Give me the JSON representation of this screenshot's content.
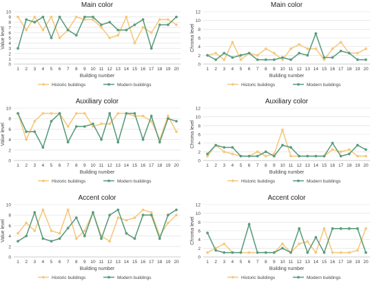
{
  "colors": {
    "historic": "#f5c97e",
    "modern": "#5b9c7e",
    "grid": "#dcdcdc",
    "text": "#444444"
  },
  "chart_data": [
    {
      "type": "line",
      "title": "Main color",
      "xlabel": "Building number",
      "ylabel": "Value level",
      "x": [
        1,
        2,
        3,
        4,
        5,
        6,
        7,
        8,
        9,
        10,
        11,
        12,
        13,
        14,
        15,
        16,
        17,
        18,
        19,
        20
      ],
      "ylim": [
        0,
        10
      ],
      "yticks": [
        0,
        1,
        2,
        3,
        4,
        5,
        6,
        7,
        8,
        9,
        10
      ],
      "legend_position": "bottom",
      "series": [
        {
          "name": "Historic buildings",
          "values": [
            9,
            6.5,
            9,
            6.5,
            9,
            5,
            6.5,
            9,
            8.5,
            8.5,
            7,
            5,
            5.5,
            9,
            4,
            7,
            6,
            8.5,
            8.5,
            7.5
          ]
        },
        {
          "name": "Modern buildings",
          "values": [
            3,
            8.5,
            8,
            9,
            5,
            9,
            6.5,
            5.5,
            9,
            9,
            7.5,
            8,
            6.5,
            6.5,
            7.5,
            8.5,
            3,
            7.5,
            7.5,
            9
          ]
        }
      ]
    },
    {
      "type": "line",
      "title": "Main color",
      "xlabel": "Building number",
      "ylabel": "Chroma level",
      "x": [
        1,
        2,
        3,
        4,
        5,
        6,
        7,
        8,
        9,
        10,
        11,
        12,
        13,
        14,
        15,
        16,
        17,
        18,
        19,
        20
      ],
      "ylim": [
        0,
        12
      ],
      "yticks": [
        0,
        2,
        4,
        6,
        8,
        10,
        12
      ],
      "legend_position": "bottom",
      "series": [
        {
          "name": "Historic buildings",
          "values": [
            2,
            2.5,
            1,
            5,
            1,
            2.5,
            2,
            3.5,
            2.5,
            1,
            3.5,
            4.5,
            3.5,
            3.5,
            1,
            3.5,
            5,
            2.5,
            2.5,
            3.5
          ]
        },
        {
          "name": "Modern buildings",
          "values": [
            2,
            1,
            2.5,
            1.5,
            2,
            2.5,
            1,
            1,
            1,
            1.5,
            1,
            2.5,
            2,
            7,
            1.5,
            1.5,
            3,
            2.5,
            1,
            1
          ]
        }
      ]
    },
    {
      "type": "line",
      "title": "Auxiliary color",
      "xlabel": "Building number",
      "ylabel": "Value level",
      "x": [
        1,
        2,
        3,
        4,
        5,
        6,
        7,
        8,
        9,
        10,
        11,
        12,
        13,
        14,
        15,
        16,
        17,
        18,
        19,
        20
      ],
      "ylim": [
        0,
        10
      ],
      "yticks": [
        0,
        2,
        4,
        6,
        8,
        10
      ],
      "legend_position": "bottom",
      "series": [
        {
          "name": "Historic buildings",
          "values": [
            9,
            4,
            7.5,
            9,
            9,
            9,
            6.5,
            9,
            9,
            6.5,
            7,
            7,
            9,
            9,
            8.5,
            8.5,
            7.5,
            4,
            8.5,
            5.5
          ]
        },
        {
          "name": "Modern buildings",
          "values": [
            9,
            5.5,
            5.5,
            2.5,
            7.5,
            9,
            3.5,
            6.5,
            6.5,
            7,
            4,
            9,
            3.5,
            9,
            9,
            4,
            8.5,
            3.5,
            8,
            7.5
          ]
        }
      ]
    },
    {
      "type": "line",
      "title": "Auxiliary color",
      "xlabel": "Building number",
      "ylabel": "Chroma level",
      "x": [
        1,
        2,
        3,
        4,
        5,
        6,
        7,
        8,
        9,
        10,
        11,
        12,
        13,
        14,
        15,
        16,
        17,
        18,
        19,
        20
      ],
      "ylim": [
        0,
        12
      ],
      "yticks": [
        0,
        2,
        4,
        6,
        8,
        10,
        12
      ],
      "legend_position": "bottom",
      "series": [
        {
          "name": "Historic buildings",
          "values": [
            1,
            3.5,
            2,
            1.5,
            1,
            1,
            2,
            1,
            1.5,
            7,
            1,
            1,
            1,
            1,
            1,
            2.5,
            2,
            2.5,
            1,
            1
          ]
        },
        {
          "name": "Modern buildings",
          "values": [
            1.5,
            3.5,
            3,
            3,
            1,
            1,
            1,
            2,
            1,
            3.5,
            3,
            1,
            1,
            1,
            1,
            4,
            1,
            1.5,
            3.5,
            2.5
          ]
        }
      ]
    },
    {
      "type": "line",
      "title": "Accent color",
      "xlabel": "Building number",
      "ylabel": "Value level",
      "x": [
        1,
        2,
        3,
        4,
        5,
        6,
        7,
        8,
        9,
        10,
        11,
        12,
        13,
        14,
        15,
        16,
        17,
        18,
        19,
        20
      ],
      "ylim": [
        0,
        10
      ],
      "yticks": [
        0,
        2,
        4,
        6,
        8,
        10
      ],
      "legend_position": "bottom",
      "series": [
        {
          "name": "Historic buildings",
          "values": [
            4.5,
            6.5,
            5,
            9,
            5,
            4.5,
            9,
            3.5,
            5,
            8.5,
            4,
            3,
            7.5,
            7,
            7.5,
            9,
            8.5,
            4,
            6.5,
            8
          ]
        },
        {
          "name": "Modern buildings",
          "values": [
            3,
            4,
            8.5,
            3.5,
            3,
            3.5,
            5.5,
            7.5,
            4,
            8.5,
            3.5,
            8,
            9,
            4.5,
            3.5,
            8,
            8,
            3.5,
            8,
            9
          ]
        }
      ]
    },
    {
      "type": "line",
      "title": "Accent color",
      "xlabel": "Building number",
      "ylabel": "Chroma level",
      "x": [
        1,
        2,
        3,
        4,
        5,
        6,
        7,
        8,
        9,
        10,
        11,
        12,
        13,
        14,
        15,
        16,
        17,
        18,
        19,
        20
      ],
      "ylim": [
        0,
        12
      ],
      "yticks": [
        0,
        2,
        4,
        6,
        8,
        10,
        12
      ],
      "legend_position": "bottom",
      "series": [
        {
          "name": "Historic buildings",
          "values": [
            1,
            2,
            3,
            1,
            1,
            1,
            1,
            1,
            1,
            3,
            1,
            3,
            3.5,
            1,
            6.5,
            1,
            1,
            1,
            1.5,
            6.5
          ]
        },
        {
          "name": "Modern buildings",
          "values": [
            5.5,
            1.5,
            1,
            1,
            1,
            7.5,
            1,
            1,
            1,
            2,
            1,
            6.5,
            1,
            4.5,
            1,
            6.5,
            6.5,
            6.5,
            6.5,
            1
          ]
        }
      ]
    }
  ]
}
